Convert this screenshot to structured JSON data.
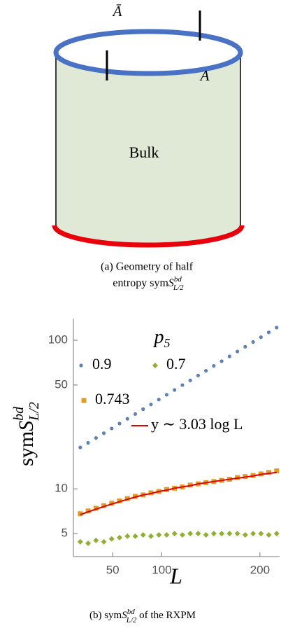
{
  "diagram": {
    "label_top": "Ā",
    "label_region": "A",
    "label_bulk": "Bulk"
  },
  "caption_a": {
    "line1": "(a) Geometry of half",
    "line2": "entropy sym",
    "symbol": "S",
    "sup": "bd",
    "sub": "L/2"
  },
  "chart_data": {
    "type": "scatter",
    "x_label": "L",
    "y_label": {
      "text": "sym",
      "symbol": "S",
      "sup": "bd",
      "sub": "L/2"
    },
    "legend_title": {
      "text": "p",
      "sub": "5"
    },
    "x": [
      17,
      25,
      33,
      41,
      49,
      57,
      65,
      73,
      81,
      89,
      97,
      105,
      113,
      121,
      129,
      137,
      145,
      153,
      161,
      169,
      177,
      185,
      193,
      201,
      209,
      217
    ],
    "series": [
      {
        "name": "0.9",
        "color": "#5e81b5",
        "marker": "circle",
        "values": [
          19.0,
          20.4,
          22.0,
          23.7,
          25.5,
          27.5,
          29.6,
          31.9,
          34.4,
          37.0,
          39.9,
          43.0,
          46.3,
          49.9,
          53.7,
          57.9,
          62.3,
          67.2,
          72.3,
          77.9,
          84.0,
          90.4,
          97.4,
          104.9,
          113.0,
          121.7
        ]
      },
      {
        "name": "0.7",
        "color": "#8fb032",
        "marker": "diamond",
        "values": [
          4.4,
          4.3,
          4.5,
          4.4,
          4.6,
          4.7,
          4.8,
          4.8,
          4.9,
          4.8,
          4.9,
          4.9,
          5.0,
          4.9,
          5.0,
          5.0,
          4.9,
          5.0,
          5.0,
          5.0,
          5.0,
          4.9,
          5.0,
          5.0,
          4.9,
          5.0
        ]
      },
      {
        "name": "0.743",
        "color": "#e19c24",
        "marker": "square",
        "values": [
          6.8,
          7.1,
          7.4,
          7.7,
          8.0,
          8.3,
          8.6,
          8.9,
          9.1,
          9.4,
          9.6,
          9.9,
          10.1,
          10.3,
          10.6,
          10.8,
          11.0,
          11.2,
          11.4,
          11.6,
          11.9,
          12.1,
          12.3,
          12.6,
          12.9,
          13.2
        ]
      },
      {
        "name": "y ∼ 3.03 log L",
        "color": "#e00000",
        "marker": "line",
        "values": [
          6.7,
          7.0,
          7.3,
          7.6,
          7.9,
          8.2,
          8.5,
          8.8,
          9.1,
          9.3,
          9.6,
          9.8,
          10.1,
          10.3,
          10.5,
          10.8,
          11.0,
          11.2,
          11.4,
          11.6,
          11.8,
          12.0,
          12.2,
          12.5,
          12.7,
          12.9
        ]
      }
    ],
    "xlim": [
      10,
      220
    ],
    "ylim": [
      3.5,
      140
    ],
    "xticks": [
      50,
      100,
      200
    ],
    "yticks": [
      5,
      10,
      50,
      100
    ],
    "y_scale": "log"
  },
  "caption_b": {
    "text": "(b) sym",
    "symbol": "S",
    "sup": "bd",
    "sub": "L/2",
    "tail": " of the RXPM"
  }
}
